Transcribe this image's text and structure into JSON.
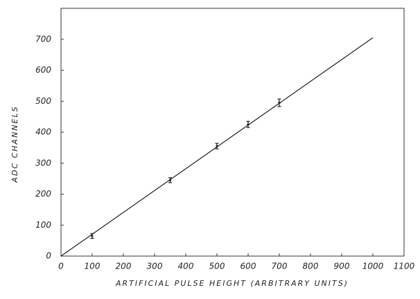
{
  "chart_data": {
    "type": "scatter",
    "x_label": "ARTIFICIAL PULSE HEIGHT (ARBITRARY UNITS)",
    "y_label": "ADC CHANNELS",
    "series": [
      {
        "color": "#222222",
        "x": [
          100,
          350,
          500,
          600,
          700
        ],
        "values": [
          65,
          245,
          355,
          425,
          495
        ],
        "errors": [
          8,
          8,
          9,
          10,
          12
        ]
      }
    ],
    "fit_line": {
      "color": "#222222",
      "x": [
        0,
        1000
      ],
      "values": [
        0,
        705
      ]
    },
    "xlim": [
      0,
      1100
    ],
    "xticks": [
      0,
      100,
      200,
      300,
      400,
      500,
      600,
      700,
      800,
      900,
      1000,
      1100
    ],
    "ylim": [
      0,
      800
    ],
    "yticks": [
      0,
      100,
      200,
      300,
      400,
      500,
      600,
      700
    ]
  }
}
